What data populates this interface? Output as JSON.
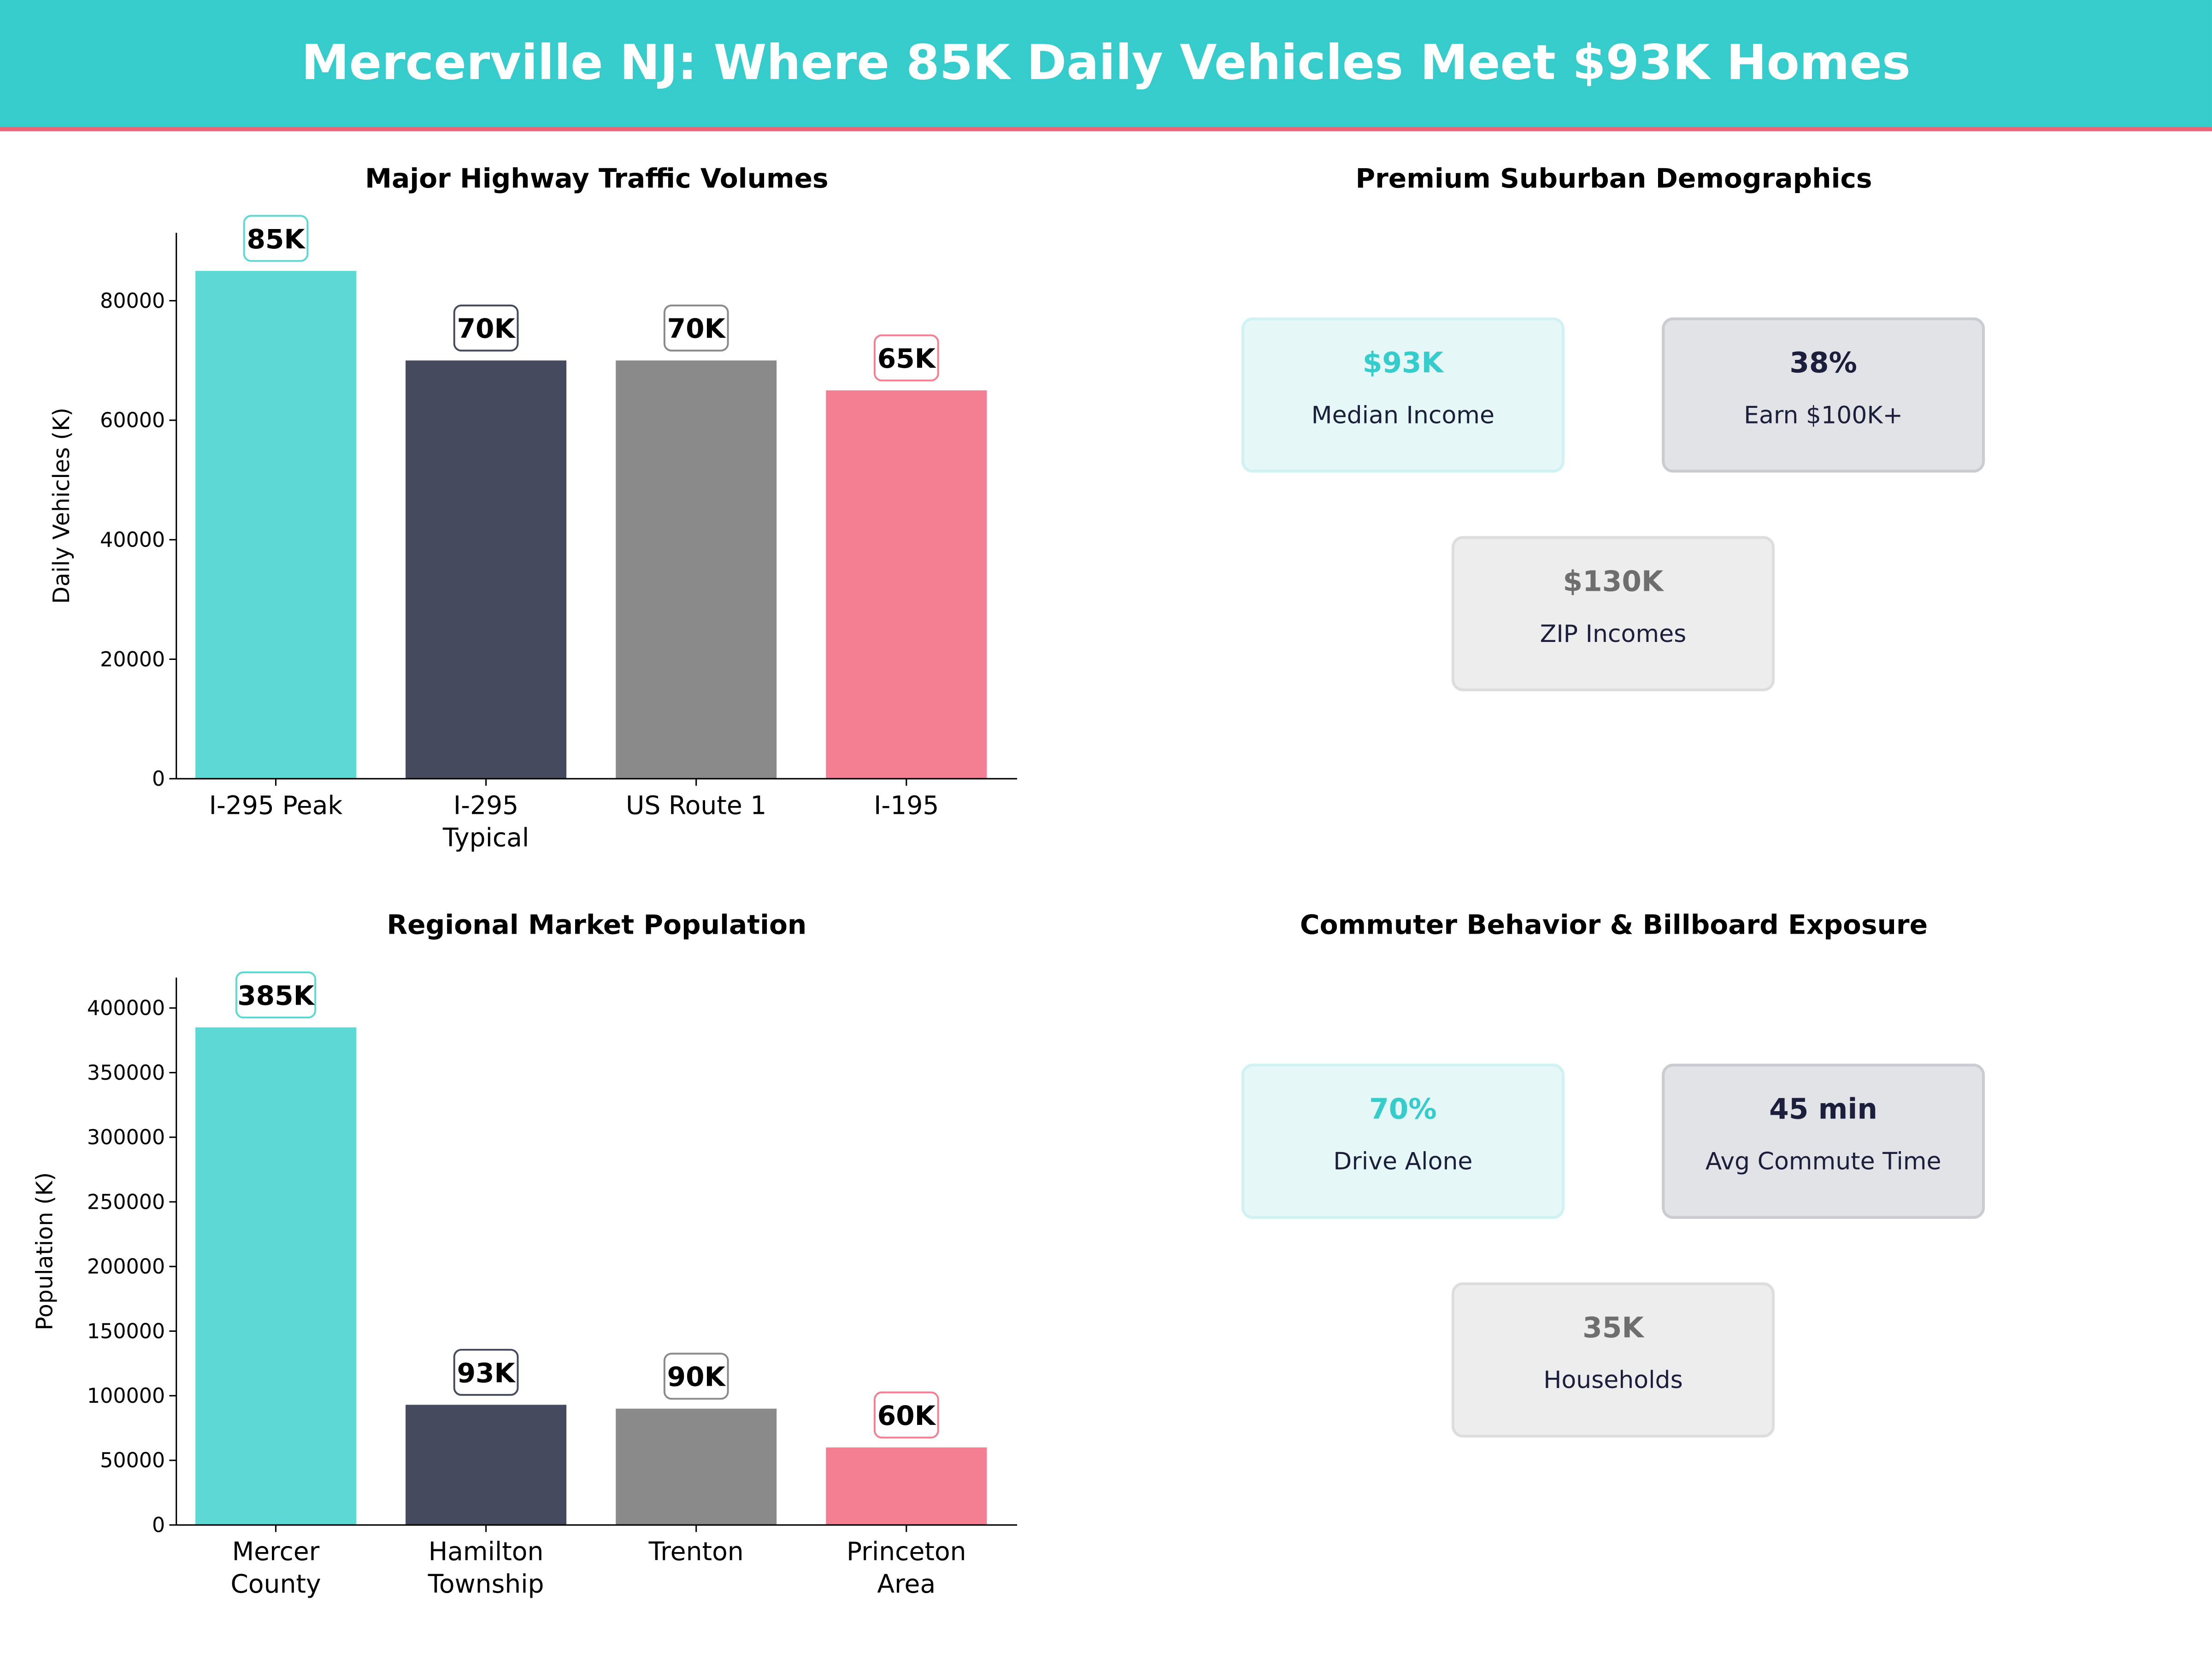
{
  "header": {
    "title": "Mercerville NJ: Where 85K Daily Vehicles Meet $93K Homes"
  },
  "colors": {
    "teal": "#5DD8D4",
    "navy": "#464A5E",
    "gray": "#8A8A8A",
    "pink": "#F47F92",
    "header_bg": "#36CCCC",
    "accent_line": "#F0647A"
  },
  "chart_data": [
    {
      "type": "bar",
      "title": "Major Highway Traffic Volumes",
      "ylabel": "Daily Vehicles (K)",
      "xlabel": "",
      "categories": [
        [
          "I-295 Peak"
        ],
        [
          "I-295",
          "Typical"
        ],
        [
          "US Route 1"
        ],
        [
          "I-195"
        ]
      ],
      "values": [
        85000,
        70000,
        70000,
        65000
      ],
      "data_labels": [
        "85K",
        "70K",
        "70K",
        "65K"
      ],
      "yticks": [
        0,
        20000,
        40000,
        60000,
        80000
      ],
      "ylim": [
        0,
        91375
      ],
      "grid": false
    },
    {
      "type": "bar",
      "title": "Regional Market Population",
      "ylabel": "Population (K)",
      "xlabel": "",
      "categories": [
        [
          "Mercer",
          "County"
        ],
        [
          "Hamilton",
          "Township"
        ],
        [
          "Trenton"
        ],
        [
          "Princeton",
          "Area"
        ]
      ],
      "values": [
        385000,
        93000,
        90000,
        60000
      ],
      "data_labels": [
        "385K",
        "93K",
        "90K",
        "60K"
      ],
      "yticks": [
        0,
        50000,
        100000,
        150000,
        200000,
        250000,
        300000,
        350000,
        400000
      ],
      "ylim": [
        0,
        423500
      ],
      "grid": false
    }
  ],
  "demographics": {
    "title": "Premium Suburban Demographics",
    "cards": [
      {
        "value": "$93K",
        "label": "Median Income"
      },
      {
        "value": "38%",
        "label": "Earn $100K+"
      },
      {
        "value": "$130K",
        "label": "ZIP Incomes"
      }
    ]
  },
  "commuter": {
    "title": "Commuter Behavior & Billboard Exposure",
    "cards": [
      {
        "value": "70%",
        "label": "Drive Alone"
      },
      {
        "value": "45 min",
        "label": "Avg Commute Time"
      },
      {
        "value": "35K",
        "label": "Households"
      }
    ]
  }
}
